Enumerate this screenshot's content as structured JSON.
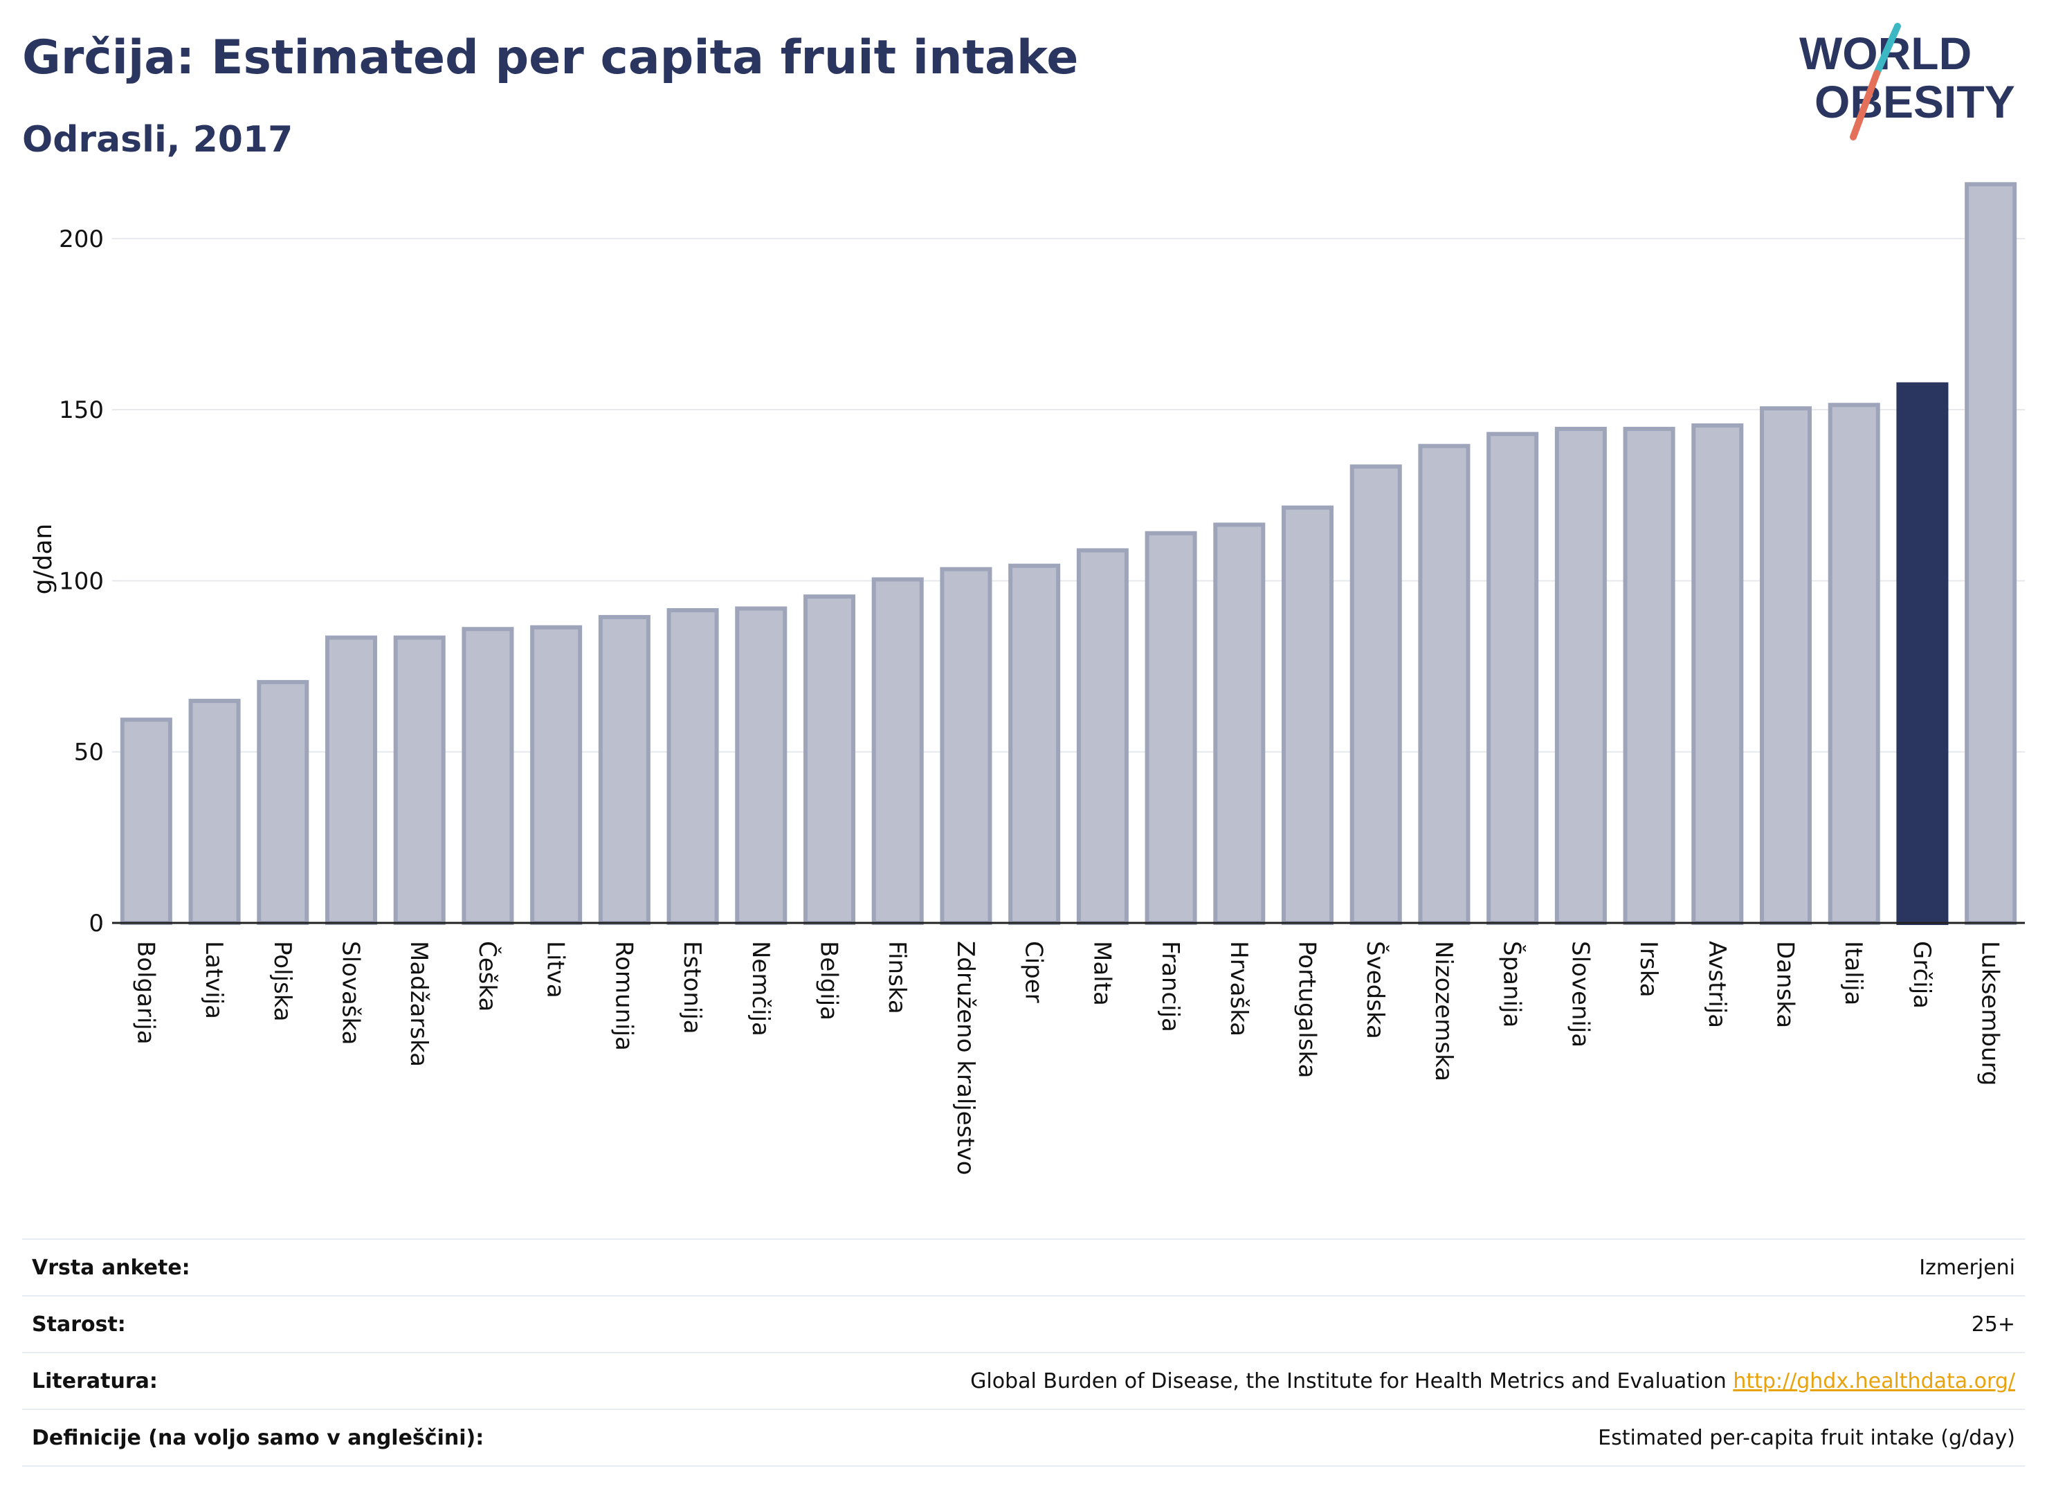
{
  "header": {
    "title": "Grčija: Estimated per capita fruit intake",
    "subtitle": "Odrasli, 2017"
  },
  "logo": {
    "line1": "WORLD",
    "line2": "OBESITY",
    "colors": {
      "text": "#2a3560",
      "slash_teal": "#3cb8c4",
      "slash_coral": "#e4705a"
    }
  },
  "chart_data": {
    "type": "bar",
    "ylabel": "g/dan",
    "ylim": [
      0,
      220
    ],
    "yticks": [
      0,
      50,
      100,
      150,
      200
    ],
    "grid": true,
    "highlight": "Grčija",
    "colors": {
      "bar": "#bcc0ce",
      "bar_border": "#9ea4ba",
      "highlight": "#2a3560"
    },
    "categories": [
      "Bolgarija",
      "Latvija",
      "Poljska",
      "Slovaška",
      "Madžarska",
      "Češka",
      "Litva",
      "Romunija",
      "Estonija",
      "Nemčija",
      "Belgija",
      "Finska",
      "Združeno kraljestvo",
      "Ciper",
      "Malta",
      "Francija",
      "Hrvaška",
      "Portugalska",
      "Švedska",
      "Nizozemska",
      "Španija",
      "Slovenija",
      "Irska",
      "Avstrija",
      "Danska",
      "Italija",
      "Grčija",
      "Luksemburg"
    ],
    "values": [
      60,
      65.5,
      71,
      84,
      84,
      86.5,
      87,
      90,
      92,
      92.5,
      96,
      101,
      104,
      105,
      109.5,
      114.5,
      117,
      122,
      134,
      140,
      143.5,
      145,
      145,
      146,
      151,
      152,
      158,
      216.5
    ]
  },
  "info": {
    "rows": [
      {
        "key": "Vrsta ankete:",
        "value": "Izmerjeni"
      },
      {
        "key": "Starost:",
        "value": "25+"
      },
      {
        "key": "Literatura:",
        "value": "Global Burden of Disease, the Institute for Health Metrics and Evaluation",
        "link": "http://ghdx.healthdata.org/"
      },
      {
        "key": "Definicije (na voljo samo v angleščini):",
        "value": "Estimated per-capita fruit intake (g/day)"
      }
    ]
  }
}
